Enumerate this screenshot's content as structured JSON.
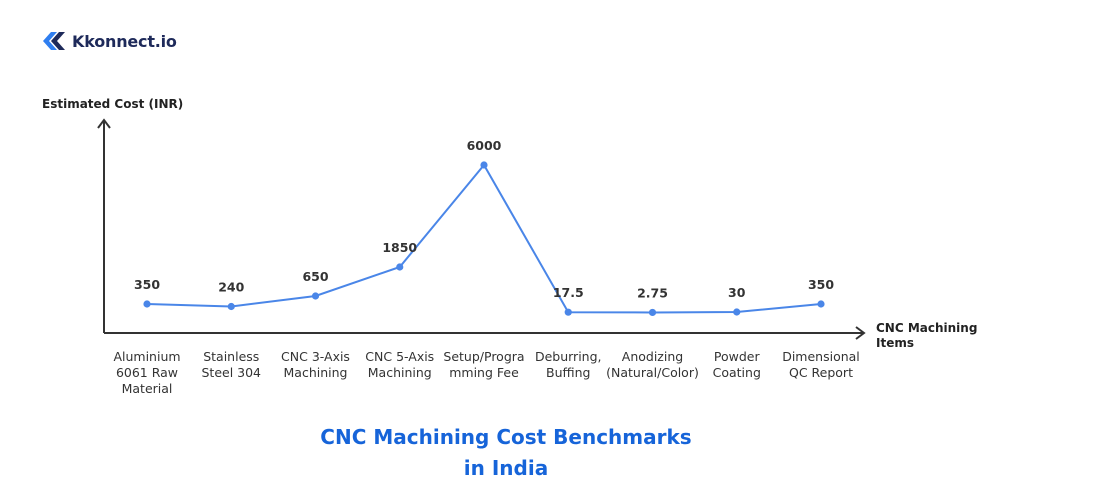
{
  "brand": {
    "name": "Kkonnect.io",
    "logo_icon": "kk-chevron-logo-icon",
    "color": "#1e2a5a"
  },
  "title": {
    "line1": "CNC Machining Cost Benchmarks",
    "line2": "in India",
    "color": "#1664d9"
  },
  "chart_data": {
    "type": "line",
    "ylabel": "Estimated Cost (INR)",
    "xlabel_lines": [
      "CNC Machining",
      "Items"
    ],
    "categories": [
      [
        "Aluminium",
        "6061 Raw",
        "Material"
      ],
      [
        "Stainless",
        "Steel 304"
      ],
      [
        "CNC 3-Axis",
        "Machining"
      ],
      [
        "CNC 5-Axis",
        "Machining"
      ],
      [
        "Setup/Progra",
        "mming Fee"
      ],
      [
        "Deburring,",
        "Buffing"
      ],
      [
        "Anodizing",
        "(Natural/Color)"
      ],
      [
        "Powder",
        "Coating"
      ],
      [
        "Dimensional",
        "QC Report"
      ]
    ],
    "values": [
      350,
      240,
      650,
      1850,
      6000,
      17.5,
      2.75,
      30,
      350
    ],
    "data_labels": [
      "350",
      "240",
      "650",
      "1850",
      "6000",
      "17.5",
      "2.75",
      "30",
      "350"
    ],
    "grid": false,
    "line_color": "#4a86e8",
    "axis_color": "#333333"
  }
}
